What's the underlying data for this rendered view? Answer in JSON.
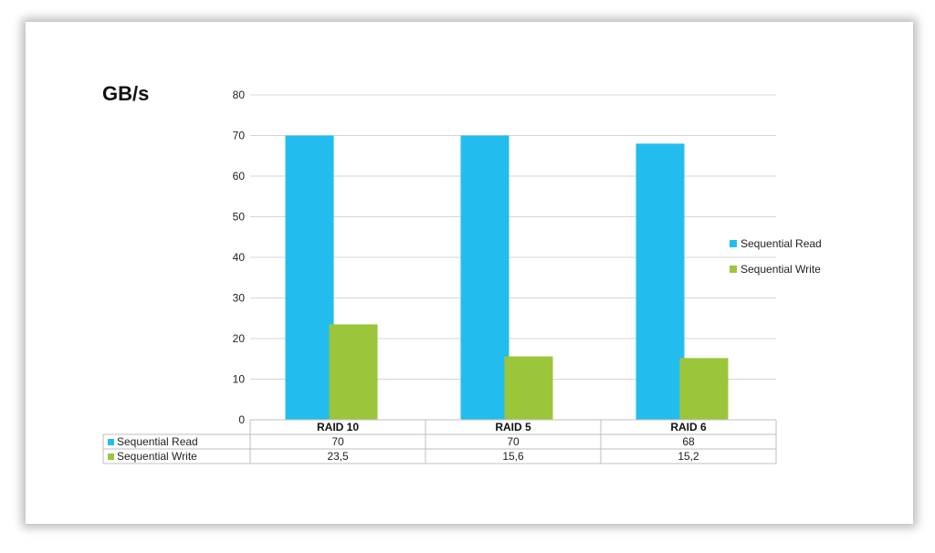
{
  "colors": {
    "read": "#22BDEE",
    "write": "#9BC53A",
    "grid": "#d6d6d6",
    "border": "#bfbfbf"
  },
  "chart_data": {
    "type": "bar",
    "title": "",
    "ylabel": "GB/s",
    "xlabel": "",
    "ylim": [
      0,
      80
    ],
    "yticks": [
      0,
      10,
      20,
      30,
      40,
      50,
      60,
      70,
      80
    ],
    "categories": [
      "RAID 10",
      "RAID 5",
      "RAID 6"
    ],
    "series": [
      {
        "name": "Sequential Read",
        "values": [
          70,
          70,
          68
        ],
        "labels": [
          "70",
          "70",
          "68"
        ]
      },
      {
        "name": "Sequential Write",
        "values": [
          23.5,
          15.6,
          15.2
        ],
        "labels": [
          "23,5",
          "15,6",
          "15,2"
        ]
      }
    ],
    "grid": true,
    "legend": "right",
    "data_table": true
  }
}
